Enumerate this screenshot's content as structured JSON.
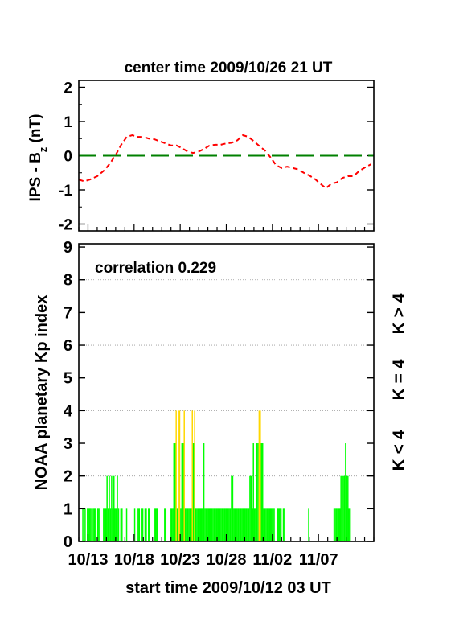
{
  "colors": {
    "bz_curve": "#ff0000",
    "zero_line": "#008000",
    "kp_low": "#00ff00",
    "kp_mid": "#ffd700",
    "kp_high": "#ff0000"
  },
  "chart_data": [
    {
      "type": "line",
      "title": "center time 2009/10/26 21 UT",
      "ylabel": "IPS - B",
      "ylabel_sub": "z",
      "ylabel_unit": " (nT)",
      "xlim": [
        0,
        32
      ],
      "ylim": [
        -2.2,
        2.2
      ],
      "yticks": [
        -2,
        -1,
        0,
        1,
        2
      ],
      "grid": false,
      "series": [
        {
          "style": "dashed-red",
          "x": [
            0,
            0.6,
            1.2,
            2,
            2.8,
            3.4,
            4,
            4.6,
            5.2,
            5.8,
            6.4,
            7,
            7.6,
            8.2,
            8.8,
            9.4,
            10,
            10.6,
            11.2,
            11.8,
            12.4,
            13,
            13.6,
            14.2,
            14.8,
            15.4,
            16,
            16.6,
            17.2,
            17.8,
            18.4,
            19,
            19.6,
            20.2,
            20.8,
            21.4,
            22,
            22.6,
            23.2,
            23.8,
            24.4,
            25,
            25.6,
            26.2,
            26.8,
            27.4,
            28,
            28.6,
            29.2,
            29.8,
            30.4,
            31,
            31.7
          ],
          "y": [
            -0.7,
            -0.75,
            -0.7,
            -0.6,
            -0.42,
            -0.22,
            0.02,
            0.32,
            0.55,
            0.6,
            0.55,
            0.55,
            0.5,
            0.48,
            0.42,
            0.36,
            0.3,
            0.3,
            0.22,
            0.12,
            0.08,
            0.12,
            0.2,
            0.3,
            0.32,
            0.32,
            0.36,
            0.38,
            0.45,
            0.6,
            0.55,
            0.42,
            0.28,
            0.15,
            -0.05,
            -0.28,
            -0.36,
            -0.32,
            -0.36,
            -0.4,
            -0.5,
            -0.58,
            -0.68,
            -0.82,
            -0.95,
            -0.82,
            -0.78,
            -0.65,
            -0.6,
            -0.6,
            -0.45,
            -0.35,
            -0.25
          ]
        },
        {
          "style": "dashed-green",
          "x": [
            0,
            32
          ],
          "y": [
            0,
            0
          ]
        }
      ]
    },
    {
      "type": "bar",
      "title": "",
      "annotation": "correlation 0.229",
      "xlabel": "start time 2009/10/12 03 UT",
      "ylabel": "NOAA planetary Kp index",
      "xlim": [
        0,
        32
      ],
      "ylim": [
        0,
        9.1
      ],
      "yticks": [
        0,
        1,
        2,
        3,
        4,
        5,
        6,
        7,
        8,
        9
      ],
      "gridlines_at": [
        2,
        4,
        6,
        8
      ],
      "x_tick_labels": [
        "10/13",
        "10/18",
        "10/23",
        "10/28",
        "11/02",
        "11/07"
      ],
      "x_tick_values": [
        1,
        6,
        11,
        16,
        21,
        26
      ],
      "legend_position": "right-vertical",
      "legend": [
        "K < 4",
        "K = 4",
        "K > 4"
      ],
      "bins_per_day": 8,
      "kp": [
        0,
        0,
        0,
        1,
        0,
        1,
        0,
        1,
        1,
        1,
        1,
        0,
        1,
        1,
        1,
        0,
        1,
        1,
        0,
        0,
        0,
        1,
        1,
        1,
        2,
        1,
        2,
        1,
        2,
        1,
        2,
        1,
        1,
        2,
        1,
        0,
        1,
        1,
        0,
        0,
        0,
        1,
        0,
        0,
        0,
        0,
        0,
        0,
        1,
        0,
        0,
        1,
        1,
        0,
        1,
        1,
        0,
        1,
        1,
        0,
        1,
        1,
        0,
        0,
        0,
        1,
        1,
        1,
        1,
        0,
        0,
        0,
        0,
        0,
        1,
        1,
        0,
        0,
        0,
        1,
        1,
        1,
        3,
        3,
        4,
        1,
        4,
        4,
        1,
        3,
        3,
        4,
        1,
        1,
        1,
        1,
        1,
        1,
        4,
        3,
        4,
        1,
        1,
        1,
        1,
        1,
        1,
        1,
        3,
        1,
        1,
        1,
        1,
        1,
        1,
        1,
        1,
        1,
        1,
        1,
        1,
        1,
        1,
        1,
        1,
        1,
        1,
        1,
        1,
        1,
        1,
        1,
        2,
        2,
        1,
        1,
        1,
        1,
        1,
        1,
        1,
        1,
        1,
        1,
        1,
        1,
        1,
        1,
        2,
        2,
        1,
        3,
        1,
        1,
        3,
        3,
        4,
        4,
        3,
        3,
        1,
        1,
        1,
        1,
        1,
        1,
        1,
        1,
        1,
        1,
        0,
        0,
        1,
        1,
        1,
        1,
        0,
        1,
        1,
        0,
        0,
        0,
        0,
        0,
        0,
        0,
        0,
        0,
        0,
        0,
        0,
        0,
        0,
        0,
        0,
        0,
        0,
        0,
        0,
        1,
        0,
        0,
        0,
        0,
        0,
        0,
        0,
        0,
        0,
        0,
        0,
        0,
        0,
        0,
        0,
        0,
        0,
        0,
        0,
        0,
        0,
        1,
        1,
        1,
        1,
        1,
        1,
        2,
        2,
        2,
        2,
        3,
        2,
        2,
        1,
        1,
        0,
        0,
        0,
        0,
        0,
        0,
        0,
        0,
        0,
        0,
        0,
        0,
        0,
        0,
        0,
        0,
        0,
        0,
        0,
        0,
        0,
        0,
        0,
        0
      ]
    }
  ]
}
